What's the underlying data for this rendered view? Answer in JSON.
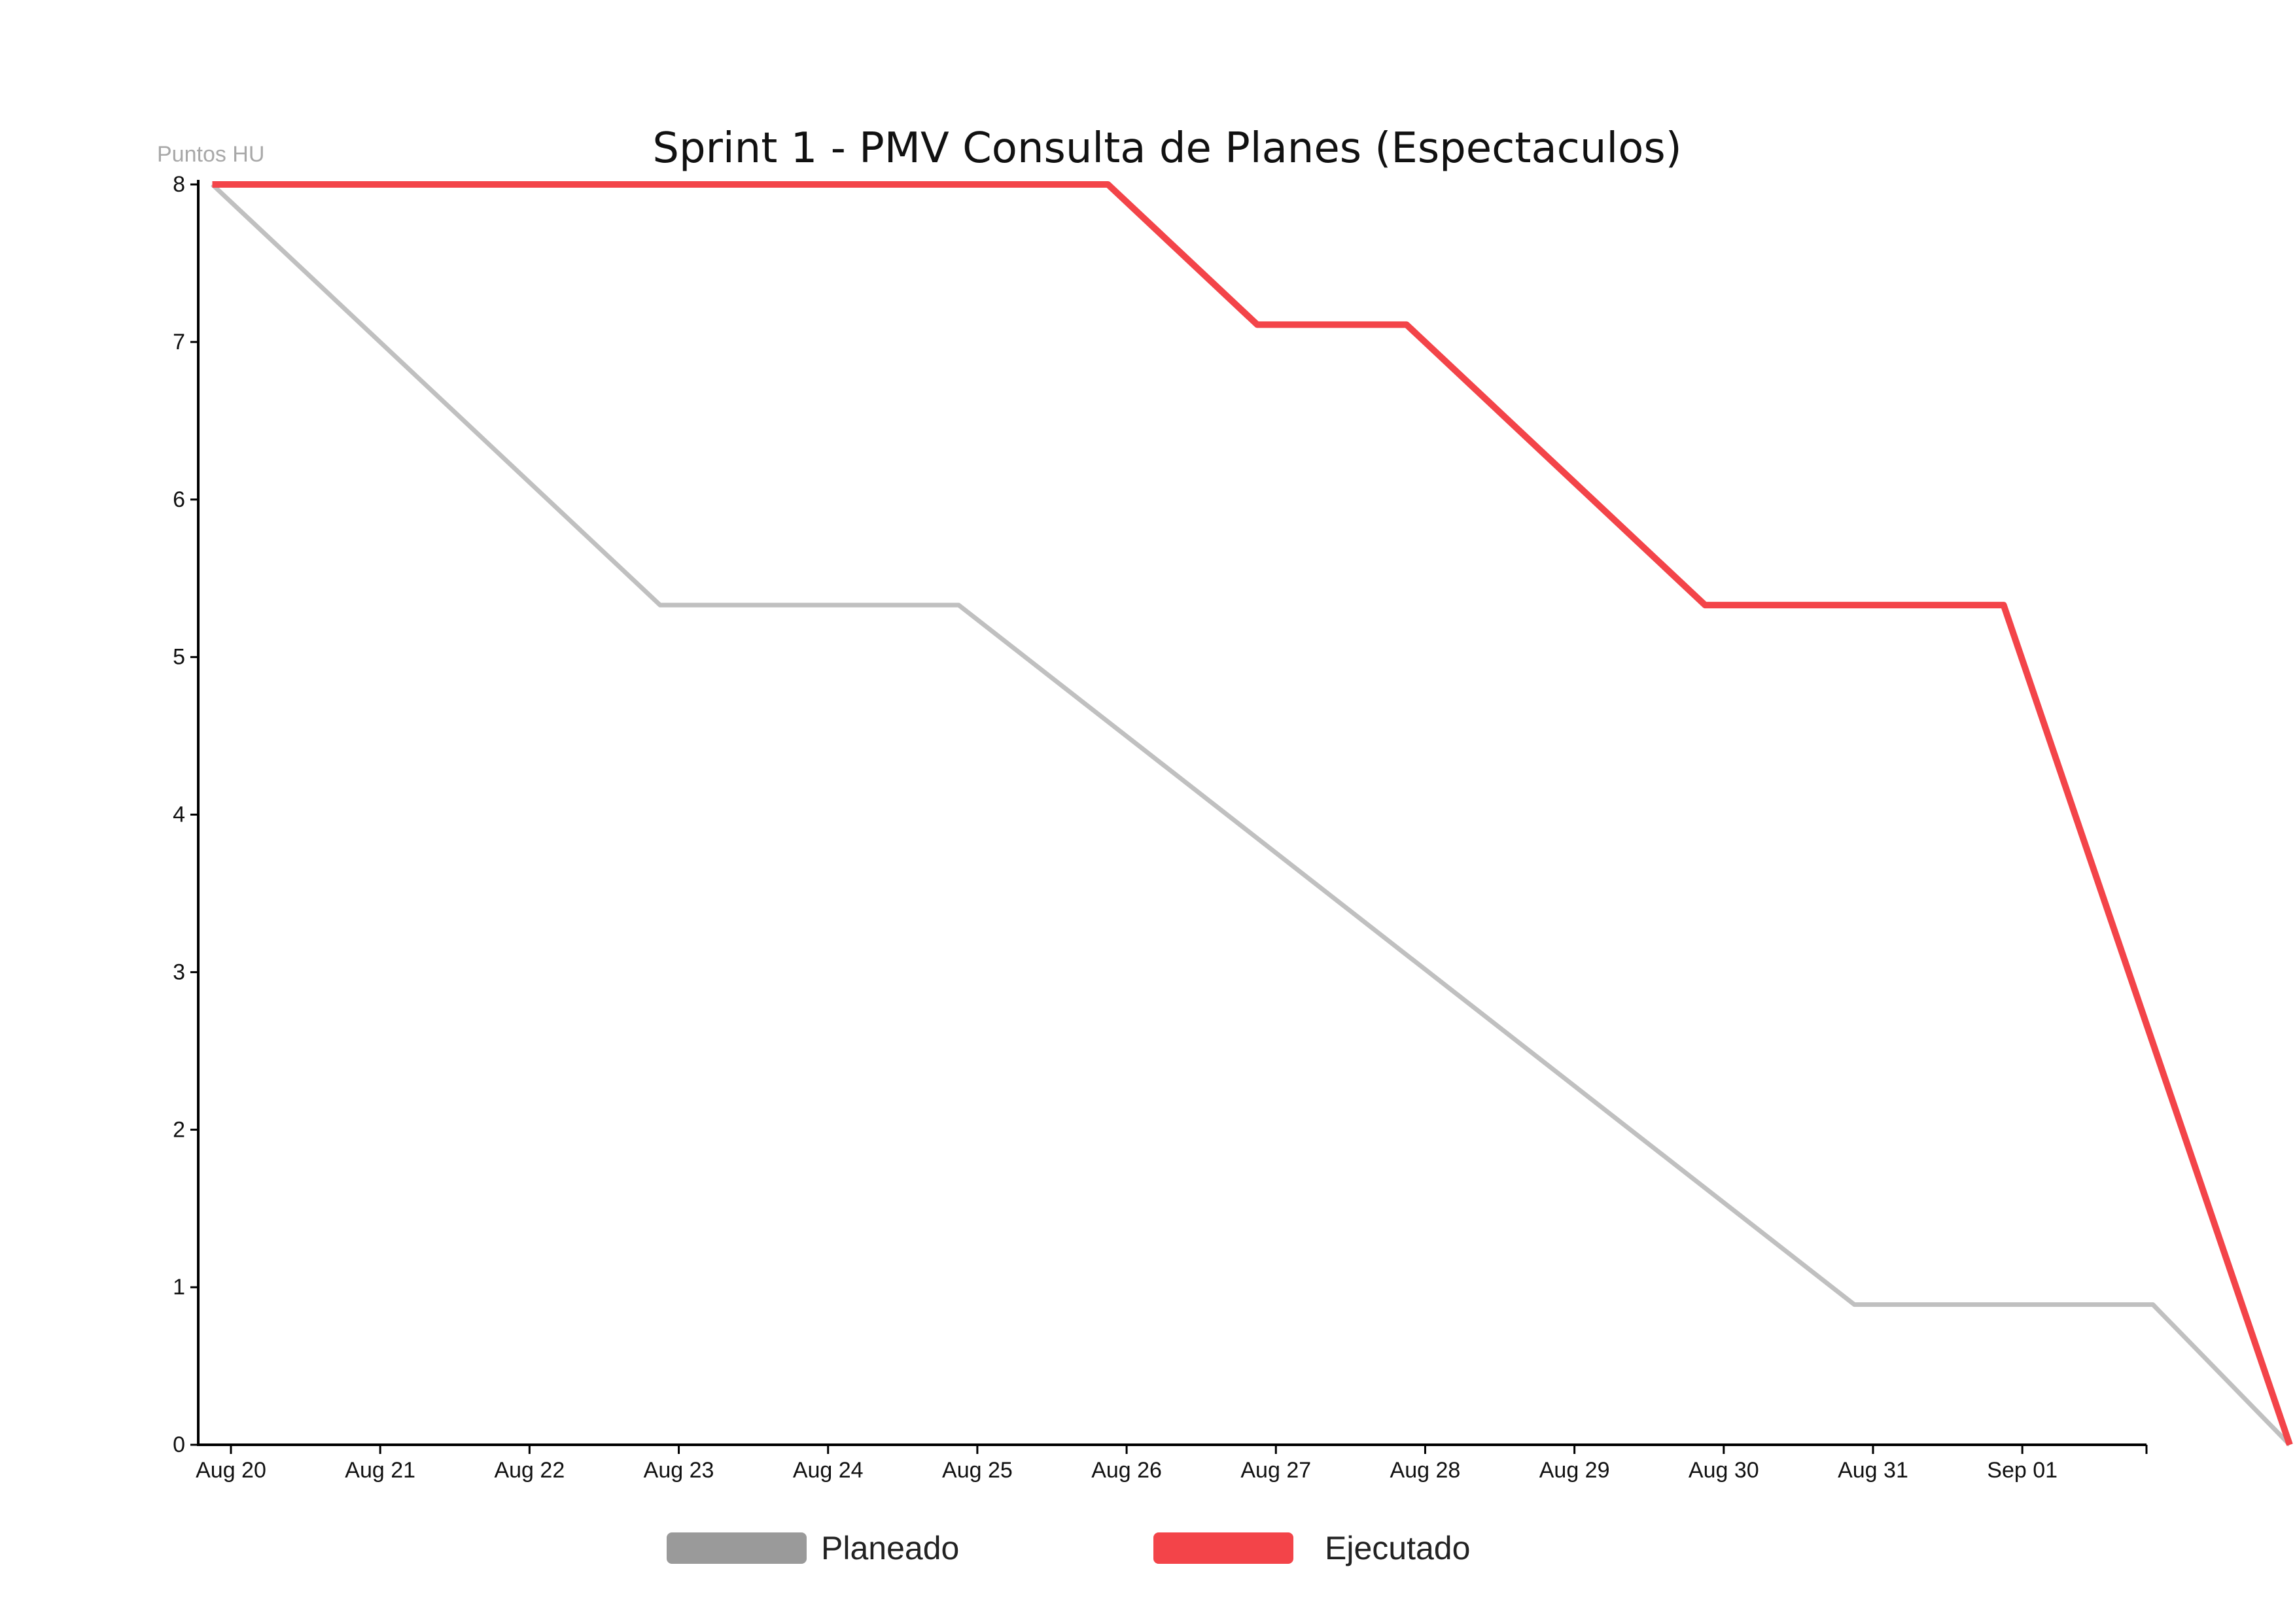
{
  "chart_data": {
    "type": "line",
    "title": "Sprint 1 - PMV Consulta de Planes (Espectaculos)",
    "xlabel": "",
    "ylabel": "Puntos HU",
    "x_ticks": [
      "Aug 20",
      "Aug 21",
      "Aug 22",
      "Aug 23",
      "Aug 24",
      "Aug 25",
      "Aug 26",
      "Aug 27",
      "Aug 28",
      "Aug 29",
      "Aug 30",
      "Aug 31",
      "Sep 01"
    ],
    "y_ticks": [
      0,
      1,
      2,
      3,
      4,
      5,
      6,
      7,
      8
    ],
    "xlim": [
      "2018-08-19T21:00",
      "2018-09-01T19:00"
    ],
    "ylim": [
      0,
      8
    ],
    "grid": false,
    "legend_position": "bottom",
    "series": [
      {
        "name": "Planeado",
        "color": "#c0c0c0",
        "legend_color": "#9a9a9a",
        "points": [
          {
            "x": "2018-08-19T21:00",
            "y": 8
          },
          {
            "x": "2018-08-22T21:00",
            "y": 5.33
          },
          {
            "x": "2018-08-24T21:00",
            "y": 5.33
          },
          {
            "x": "2018-08-30T21:00",
            "y": 0.89
          },
          {
            "x": "2018-09-01T21:00",
            "y": 0.89
          },
          {
            "x": "2018-09-02T19:00",
            "y": 0
          }
        ]
      },
      {
        "name": "Ejecutado",
        "color": "#f34449",
        "legend_color": "#f34449",
        "points": [
          {
            "x": "2018-08-19T21:00",
            "y": 8
          },
          {
            "x": "2018-08-25T21:00",
            "y": 8
          },
          {
            "x": "2018-08-26T21:00",
            "y": 7.11
          },
          {
            "x": "2018-08-27T21:00",
            "y": 7.11
          },
          {
            "x": "2018-08-29T21:00",
            "y": 5.33
          },
          {
            "x": "2018-08-31T21:00",
            "y": 5.33
          },
          {
            "x": "2018-09-02T19:00",
            "y": 0
          }
        ]
      }
    ]
  }
}
